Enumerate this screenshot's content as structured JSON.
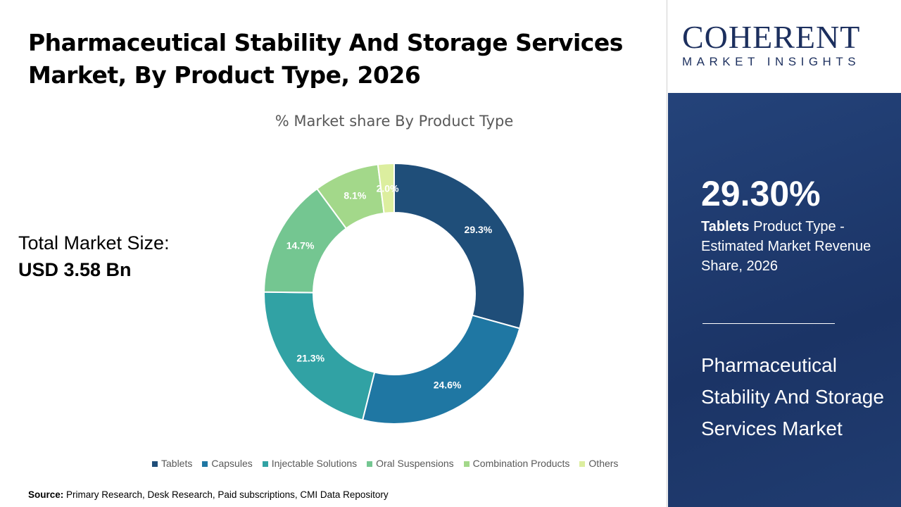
{
  "header": {
    "title": "Pharmaceutical Stability And Storage Services Market, By Product Type, 2026"
  },
  "total": {
    "label": "Total Market Size:",
    "value": "USD 3.58 Bn"
  },
  "source": {
    "label": "Source:",
    "text": " Primary Research, Desk Research, Paid subscriptions, CMI Data Repository"
  },
  "logo": {
    "top": "COHERENT",
    "bottom": "MARKET INSIGHTS"
  },
  "side": {
    "pct": "29.30%",
    "highlight": "Tablets",
    "desc": " Product Type - Estimated Market Revenue Share, 2026",
    "market": "Pharmaceutical Stability And Storage Services Market"
  },
  "chart_data": {
    "type": "donut",
    "title": "% Market share By Product Type",
    "categories": [
      "Tablets",
      "Capsules",
      "Injectable Solutions",
      "Oral Suspensions",
      "Combination Products",
      "Others"
    ],
    "values": [
      29.3,
      24.6,
      21.3,
      14.7,
      8.1,
      2.0
    ],
    "labels": [
      "29.3%",
      "24.6%",
      "21.3%",
      "14.7%",
      "8.1%",
      "2.0%"
    ],
    "colors": [
      "#1f4e79",
      "#1f77a3",
      "#31a2a4",
      "#74c691",
      "#a3d88a",
      "#dcee9f"
    ],
    "legend": "bottom"
  }
}
